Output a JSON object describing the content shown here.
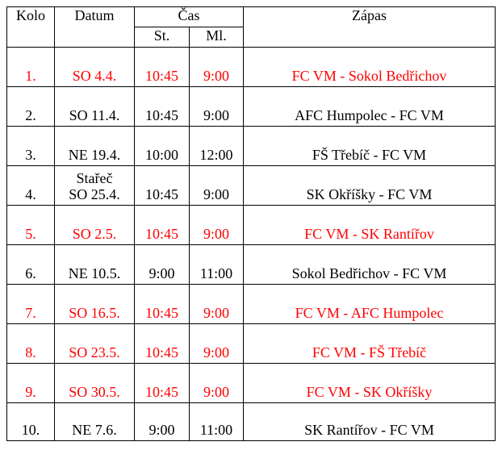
{
  "header": {
    "kolo": "Kolo",
    "datum": "Datum",
    "cas": "Čas",
    "st": "St.",
    "ml": "Ml.",
    "zapas": "Zápas"
  },
  "colors": {
    "home": "#ff0000",
    "away": "#000000"
  },
  "rows": [
    {
      "kolo": "1.",
      "note": "",
      "datum": "SO 4.4.",
      "st": "10:45",
      "ml": "9:00",
      "zapas": "FC VM - Sokol Bedřichov",
      "home": true
    },
    {
      "kolo": "2.",
      "note": "",
      "datum": "SO 11.4.",
      "st": "10:45",
      "ml": "9:00",
      "zapas": "AFC Humpolec - FC VM",
      "home": false
    },
    {
      "kolo": "3.",
      "note": "",
      "datum": "NE 19.4.",
      "st": "10:00",
      "ml": "12:00",
      "zapas": "FŠ Třebíč - FC VM",
      "home": false
    },
    {
      "kolo": "4.",
      "note": "Stařeč",
      "datum": "SO 25.4.",
      "st": "10:45",
      "ml": "9:00",
      "zapas": "SK Okříšky - FC VM",
      "home": false
    },
    {
      "kolo": "5.",
      "note": "",
      "datum": "SO 2.5.",
      "st": "10:45",
      "ml": "9:00",
      "zapas": "FC VM - SK Rantířov",
      "home": true
    },
    {
      "kolo": "6.",
      "note": "",
      "datum": "NE 10.5.",
      "st": "9:00",
      "ml": "11:00",
      "zapas": "Sokol Bedřichov - FC VM",
      "home": false
    },
    {
      "kolo": "7.",
      "note": "",
      "datum": "SO 16.5.",
      "st": "10:45",
      "ml": "9:00",
      "zapas": "FC VM - AFC Humpolec",
      "home": true
    },
    {
      "kolo": "8.",
      "note": "",
      "datum": "SO 23.5.",
      "st": "10:45",
      "ml": "9:00",
      "zapas": "FC VM - FŠ Třebíč",
      "home": true
    },
    {
      "kolo": "9.",
      "note": "",
      "datum": "SO 30.5.",
      "st": "10:45",
      "ml": "9:00",
      "zapas": "FC VM - SK Okříšky",
      "home": true
    },
    {
      "kolo": "10.",
      "note": "",
      "datum": "NE 7.6.",
      "st": "9:00",
      "ml": "11:00",
      "zapas": "SK Rantířov - FC VM",
      "home": false
    }
  ]
}
